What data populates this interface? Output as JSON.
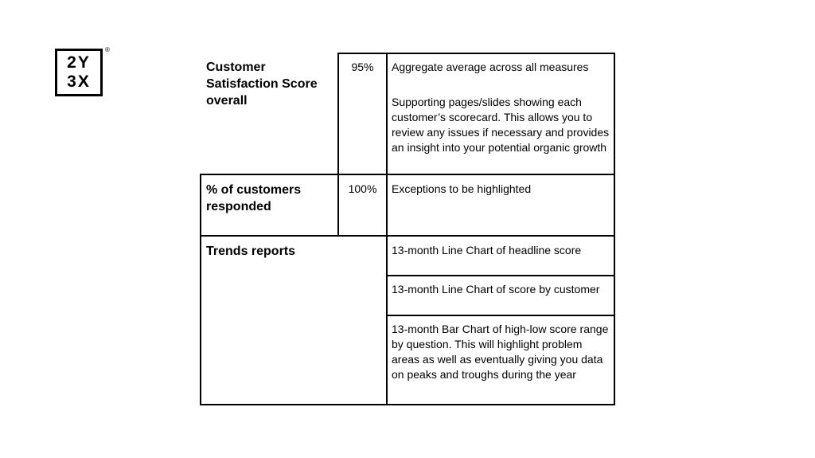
{
  "logo": {
    "line1": "2Y",
    "line2": "3X",
    "registered": "®"
  },
  "table": {
    "rows": [
      {
        "label": "Customer Satisfaction Score overall",
        "value": "95%",
        "descriptions": [
          "Aggregate average across all measures",
          "Supporting pages/slides showing each customer’s scorecard. This allows you to review any issues if necessary and provides an insight into your potential organic growth"
        ]
      },
      {
        "label": "% of customers responded",
        "value": "100%",
        "descriptions": [
          "Exceptions to be highlighted"
        ]
      },
      {
        "label": "Trends reports",
        "value": "",
        "descriptions": [
          "13-month Line Chart of headline score",
          "13-month Line Chart of score by customer",
          "13-month Bar Chart of high-low score range by question. This will highlight problem areas as well as eventually giving you data on peaks and troughs during the year"
        ]
      }
    ]
  }
}
